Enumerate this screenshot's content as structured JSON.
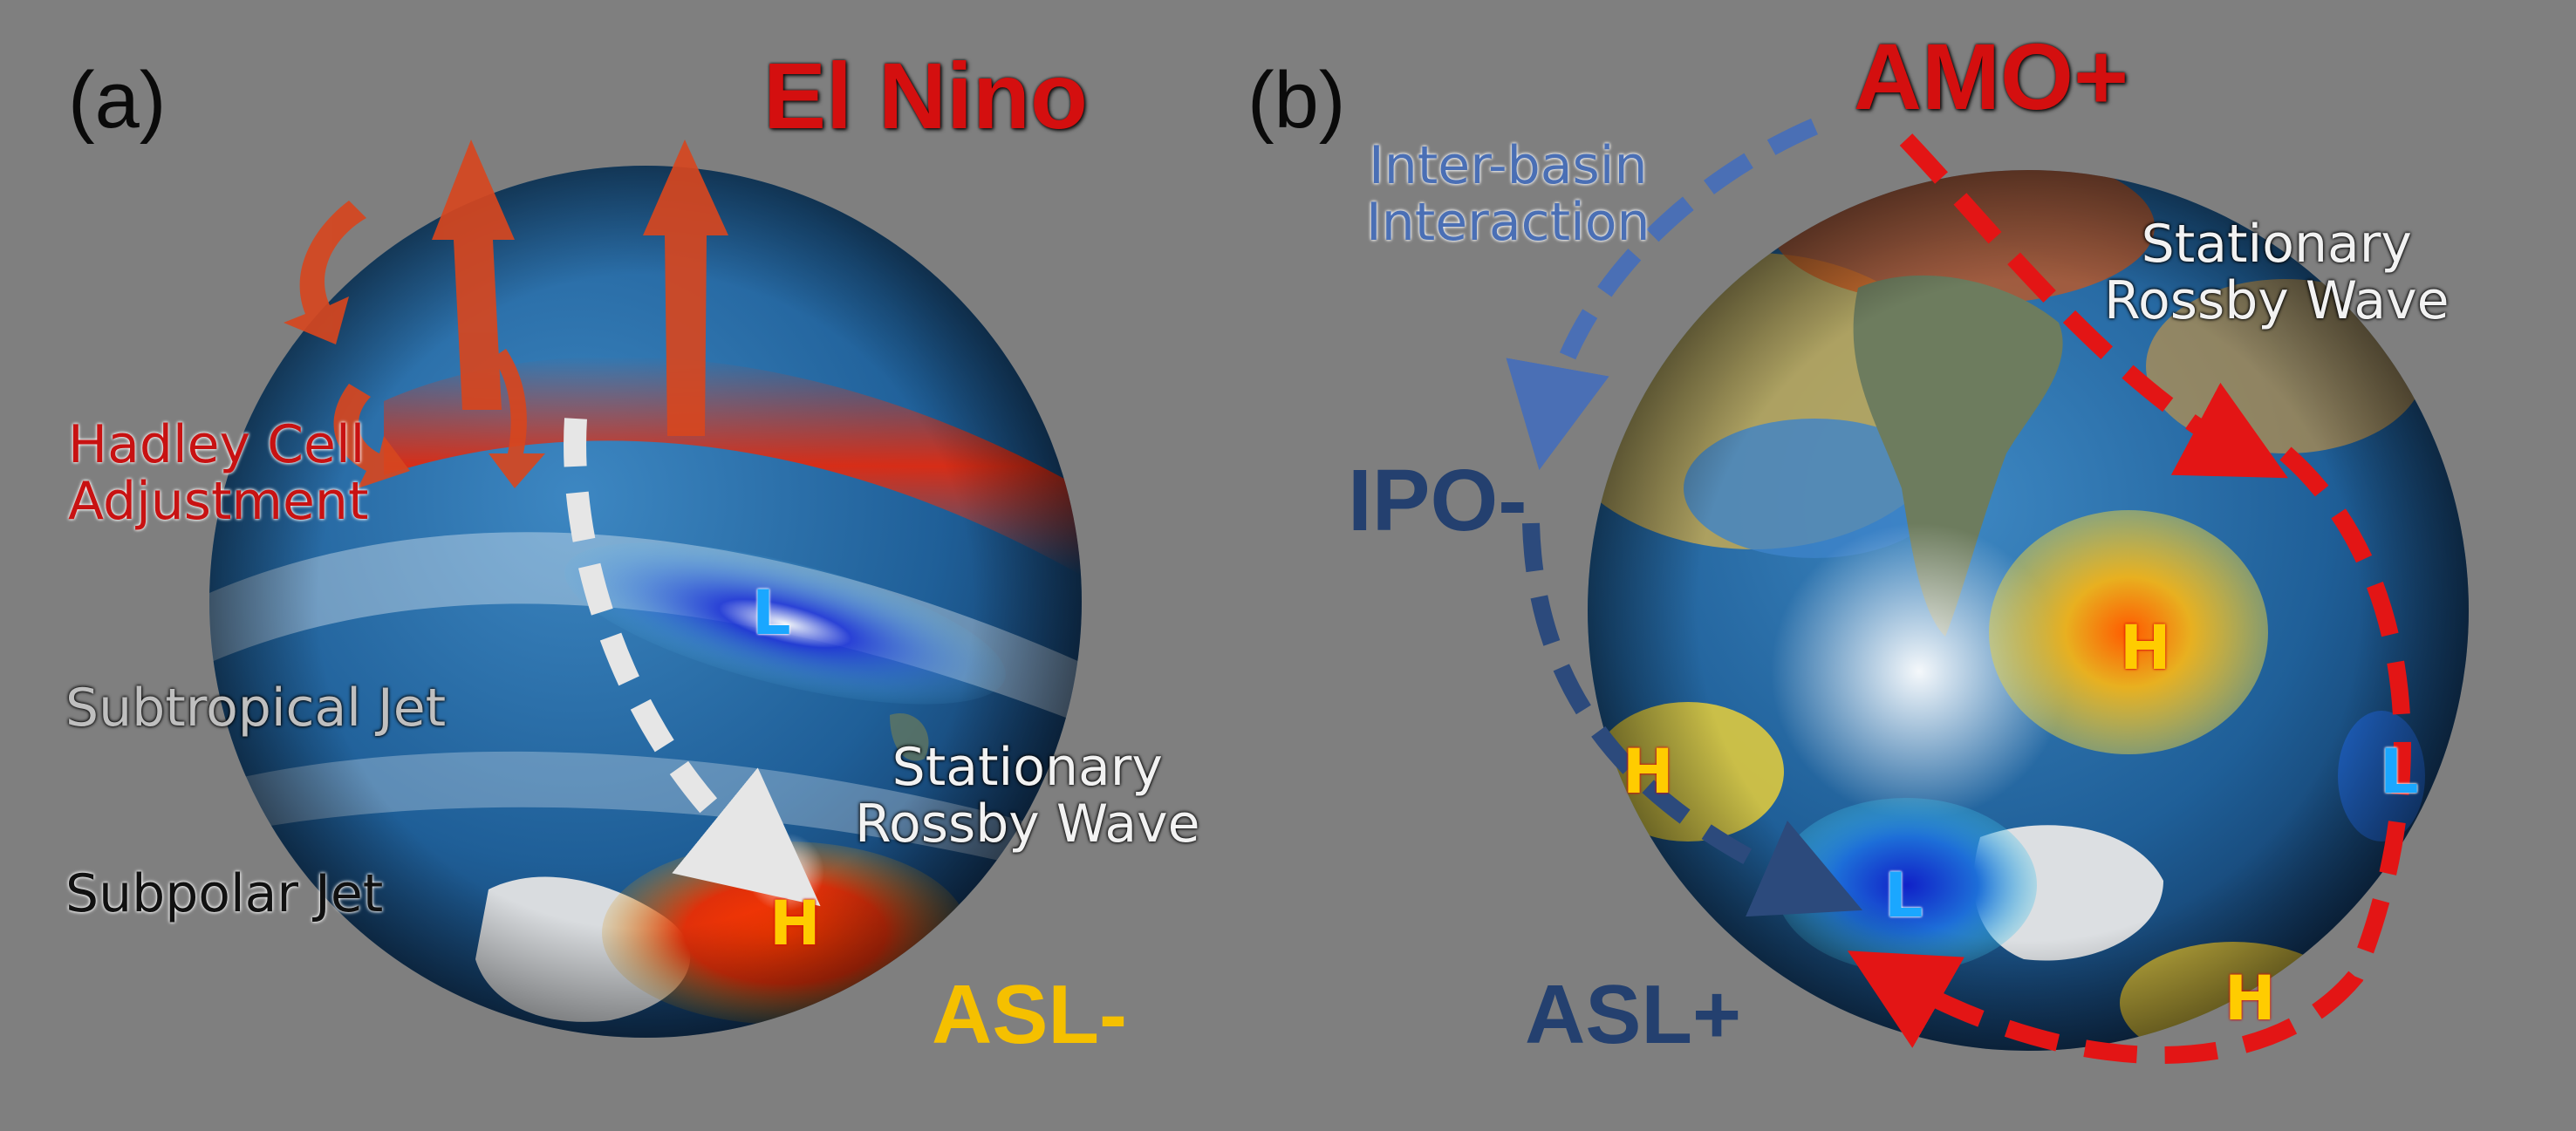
{
  "panel_a": {
    "tag": "(a)",
    "title": "El Nino",
    "hadley": "Hadley Cell\nAdjustment",
    "subtropical_jet": "Subtropical Jet",
    "subpolar_jet": "Subpolar Jet",
    "rossby": "Stationary\nRossby Wave",
    "asl": "ASL-",
    "low": "L",
    "high": "H"
  },
  "panel_b": {
    "tag": "(b)",
    "title": "AMO+",
    "interbasin": "Inter-basin\nInteraction",
    "rossby": "Stationary\nRossby Wave",
    "ipo": "IPO-",
    "asl": "ASL+",
    "highs": [
      "H",
      "H",
      "H"
    ],
    "lows": [
      "L",
      "L"
    ]
  },
  "colors": {
    "background": "#7f7f7f",
    "warm_red": "#d40f0f",
    "interaction_blue": "#4a6fb5",
    "ipo_navy": "#24406f",
    "asl_yellow": "#f5c000",
    "low_text": "#1aa7ff",
    "high_text": "#ffcc00"
  }
}
